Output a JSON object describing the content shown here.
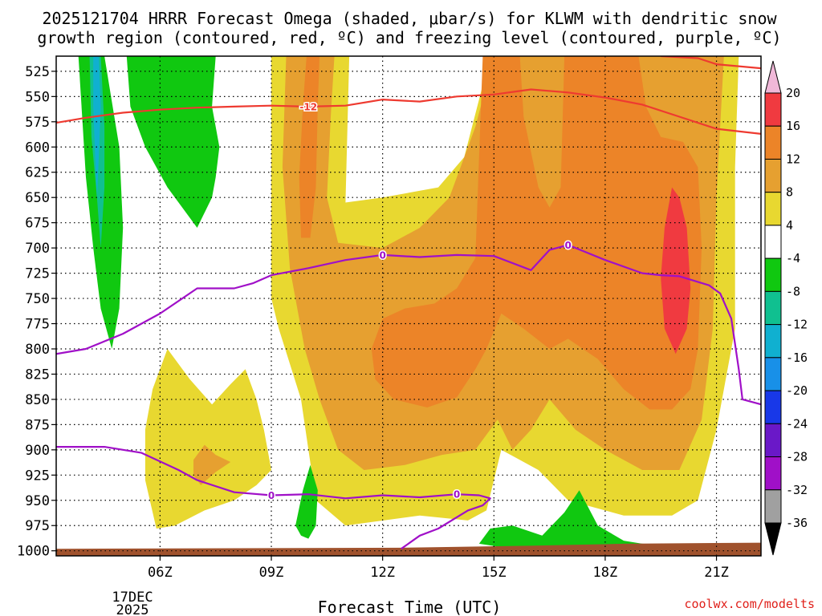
{
  "chart_data": {
    "type": "contour-cross-section",
    "title_line1": "2025121704 HRRR Forecast Omega (shaded, μbar/s) for KLWM with dendritic snow",
    "title_line2": "growth region (contoured, red, ºC) and freezing level (contoured, purple, ºC)",
    "xlabel": "Forecast Time (UTC)",
    "credit": "coolwx.com/modelts",
    "date_label_line1": "17DEC",
    "date_label_line2": "2025",
    "x_hours_range": [
      3.2,
      22.2
    ],
    "y_pressure_range": [
      1005,
      510
    ],
    "x_ticks": [
      {
        "hour": 6,
        "label": "06Z"
      },
      {
        "hour": 9,
        "label": "09Z"
      },
      {
        "hour": 12,
        "label": "12Z"
      },
      {
        "hour": 15,
        "label": "15Z"
      },
      {
        "hour": 18,
        "label": "18Z"
      },
      {
        "hour": 21,
        "label": "21Z"
      }
    ],
    "y_ticks": [
      525,
      550,
      575,
      600,
      625,
      650,
      675,
      700,
      725,
      750,
      775,
      800,
      825,
      850,
      875,
      900,
      925,
      950,
      975,
      1000
    ],
    "colorbar": {
      "labels": [
        "20",
        "16",
        "12",
        "8",
        "4",
        "-4",
        "-8",
        "-12",
        "-16",
        "-20",
        "-24",
        "-28",
        "-32",
        "-36"
      ],
      "colors": [
        "#f0b8d8",
        "#f03a40",
        "#ec8428",
        "#e6a030",
        "#e8d830",
        "#ffffff",
        "#10c810",
        "#10c090",
        "#10b0d0",
        "#1890e8",
        "#1838e8",
        "#6a18c8",
        "#a010c8",
        "#a0a0a0",
        "#000000"
      ]
    },
    "contour_labels": {
      "dendritic_minus12": "-12",
      "freezing_level_0": "0"
    },
    "regions": [
      {
        "name": "omega-4to8-east",
        "color": "#e8d830",
        "points": [
          [
            9.0,
            510
          ],
          [
            11.1,
            510
          ],
          [
            11.0,
            655
          ],
          [
            12.0,
            650
          ],
          [
            13.5,
            640
          ],
          [
            14.2,
            610
          ],
          [
            14.9,
            510
          ],
          [
            21.6,
            510
          ],
          [
            21.5,
            620
          ],
          [
            21.5,
            780
          ],
          [
            21.0,
            880
          ],
          [
            20.5,
            950
          ],
          [
            19.8,
            965
          ],
          [
            18.5,
            965
          ],
          [
            17.0,
            950
          ],
          [
            16.2,
            920
          ],
          [
            15.2,
            900
          ],
          [
            14.8,
            960
          ],
          [
            14.3,
            970
          ],
          [
            13.0,
            965
          ],
          [
            11.0,
            975
          ],
          [
            10.2,
            950
          ],
          [
            9.8,
            850
          ],
          [
            9.2,
            780
          ],
          [
            9.0,
            750
          ]
        ]
      },
      {
        "name": "omega-4to8-low",
        "color": "#e8d830",
        "points": [
          [
            5.6,
            880
          ],
          [
            5.8,
            840
          ],
          [
            6.2,
            800
          ],
          [
            6.8,
            830
          ],
          [
            7.4,
            855
          ],
          [
            7.9,
            835
          ],
          [
            8.3,
            820
          ],
          [
            8.6,
            850
          ],
          [
            8.8,
            880
          ],
          [
            9.0,
            920
          ],
          [
            8.6,
            935
          ],
          [
            8.0,
            950
          ],
          [
            7.2,
            960
          ],
          [
            6.4,
            975
          ],
          [
            5.9,
            978
          ],
          [
            5.6,
            930
          ]
        ]
      },
      {
        "name": "omega-8to12-east",
        "color": "#e6a030",
        "points": [
          [
            9.4,
            510
          ],
          [
            10.7,
            510
          ],
          [
            10.6,
            570
          ],
          [
            10.5,
            650
          ],
          [
            10.8,
            695
          ],
          [
            12.0,
            700
          ],
          [
            13.0,
            680
          ],
          [
            13.8,
            650
          ],
          [
            14.5,
            580
          ],
          [
            15.0,
            510
          ],
          [
            21.2,
            510
          ],
          [
            21.0,
            650
          ],
          [
            20.9,
            780
          ],
          [
            20.6,
            870
          ],
          [
            20.0,
            920
          ],
          [
            19.0,
            920
          ],
          [
            18.0,
            900
          ],
          [
            17.2,
            880
          ],
          [
            16.5,
            850
          ],
          [
            16.0,
            880
          ],
          [
            15.5,
            900
          ],
          [
            15.1,
            870
          ],
          [
            14.5,
            900
          ],
          [
            13.6,
            905
          ],
          [
            12.6,
            915
          ],
          [
            11.5,
            920
          ],
          [
            10.8,
            900
          ],
          [
            10.3,
            850
          ],
          [
            9.9,
            800
          ],
          [
            9.5,
            720
          ],
          [
            9.3,
            620
          ]
        ]
      },
      {
        "name": "omega-8to12-low",
        "color": "#e6a030",
        "points": [
          [
            6.9,
            910
          ],
          [
            7.2,
            895
          ],
          [
            7.5,
            905
          ],
          [
            7.9,
            912
          ],
          [
            7.5,
            922
          ],
          [
            7.1,
            935
          ],
          [
            6.9,
            925
          ]
        ]
      },
      {
        "name": "omega-12to16-east",
        "color": "#ec8428",
        "points": [
          [
            14.7,
            510
          ],
          [
            15.7,
            510
          ],
          [
            15.8,
            570
          ],
          [
            16.2,
            640
          ],
          [
            16.5,
            660
          ],
          [
            16.8,
            640
          ],
          [
            16.9,
            510
          ],
          [
            18.9,
            510
          ],
          [
            19.1,
            560
          ],
          [
            19.5,
            590
          ],
          [
            20.1,
            595
          ],
          [
            20.5,
            620
          ],
          [
            20.6,
            700
          ],
          [
            20.5,
            800
          ],
          [
            20.3,
            840
          ],
          [
            19.8,
            860
          ],
          [
            19.2,
            860
          ],
          [
            18.5,
            840
          ],
          [
            17.8,
            810
          ],
          [
            17.0,
            790
          ],
          [
            16.5,
            800
          ],
          [
            15.8,
            780
          ],
          [
            15.2,
            765
          ],
          [
            14.8,
            800
          ],
          [
            14.5,
            820
          ],
          [
            14.0,
            848
          ],
          [
            13.2,
            858
          ],
          [
            12.3,
            850
          ],
          [
            11.8,
            830
          ],
          [
            11.7,
            800
          ],
          [
            12.0,
            770
          ],
          [
            12.6,
            760
          ],
          [
            13.4,
            755
          ],
          [
            14.0,
            740
          ],
          [
            14.5,
            710
          ]
        ]
      },
      {
        "name": "omega-12to16-west",
        "color": "#ec8428",
        "points": [
          [
            9.95,
            510
          ],
          [
            10.3,
            510
          ],
          [
            10.25,
            560
          ],
          [
            10.2,
            640
          ],
          [
            10.05,
            690
          ],
          [
            9.8,
            690
          ],
          [
            9.75,
            630
          ],
          [
            9.85,
            560
          ]
        ]
      },
      {
        "name": "omega-16to20-core",
        "color": "#f03a40",
        "points": [
          [
            19.6,
            680
          ],
          [
            19.8,
            640
          ],
          [
            20.0,
            650
          ],
          [
            20.2,
            680
          ],
          [
            20.3,
            740
          ],
          [
            20.2,
            780
          ],
          [
            19.9,
            805
          ],
          [
            19.6,
            780
          ],
          [
            19.5,
            730
          ]
        ]
      },
      {
        "name": "omega-neg4to8-west",
        "color": "#10c810",
        "points": [
          [
            3.8,
            510
          ],
          [
            4.5,
            510
          ],
          [
            4.9,
            600
          ],
          [
            5.0,
            680
          ],
          [
            4.9,
            760
          ],
          [
            4.7,
            800
          ],
          [
            4.4,
            760
          ],
          [
            4.2,
            700
          ],
          [
            4.0,
            630
          ]
        ]
      },
      {
        "name": "omega-neg4to8-col2",
        "color": "#10c810",
        "points": [
          [
            5.1,
            510
          ],
          [
            7.5,
            510
          ],
          [
            7.4,
            560
          ],
          [
            7.6,
            600
          ],
          [
            7.5,
            630
          ],
          [
            7.4,
            650
          ],
          [
            7.0,
            680
          ],
          [
            6.2,
            640
          ],
          [
            5.6,
            600
          ],
          [
            5.2,
            560
          ]
        ]
      },
      {
        "name": "omega-neg4to8-small",
        "color": "#10c810",
        "points": [
          [
            9.65,
            975
          ],
          [
            9.85,
            940
          ],
          [
            10.05,
            915
          ],
          [
            10.25,
            940
          ],
          [
            10.2,
            975
          ],
          [
            10.0,
            988
          ],
          [
            9.8,
            985
          ]
        ]
      },
      {
        "name": "omega-neg4to8-sfc",
        "color": "#10c810",
        "points": [
          [
            14.6,
            993
          ],
          [
            14.9,
            978
          ],
          [
            15.5,
            975
          ],
          [
            16.3,
            985
          ],
          [
            16.9,
            962
          ],
          [
            17.3,
            940
          ],
          [
            17.8,
            975
          ],
          [
            18.5,
            990
          ],
          [
            19.0,
            993
          ],
          [
            20.0,
            995
          ],
          [
            17.0,
            997
          ],
          [
            15.5,
            998
          ]
        ]
      },
      {
        "name": "omega-neg8to12-west",
        "color": "#10c090",
        "points": [
          [
            4.1,
            510
          ],
          [
            4.4,
            510
          ],
          [
            4.5,
            580
          ],
          [
            4.5,
            640
          ],
          [
            4.4,
            700
          ],
          [
            4.3,
            650
          ],
          [
            4.15,
            590
          ]
        ]
      },
      {
        "name": "omega-neg12to16-west",
        "color": "#10b0d0",
        "points": [
          [
            4.2,
            510
          ],
          [
            4.35,
            510
          ],
          [
            4.4,
            560
          ],
          [
            4.35,
            610
          ],
          [
            4.3,
            650
          ],
          [
            4.25,
            610
          ],
          [
            4.2,
            560
          ]
        ]
      },
      {
        "name": "terrain",
        "color": "#a0522d",
        "points": [
          [
            3.2,
            1005
          ],
          [
            3.2,
            998
          ],
          [
            12.5,
            997
          ],
          [
            16.0,
            995
          ],
          [
            18.5,
            993
          ],
          [
            22.2,
            992
          ],
          [
            22.2,
            1005
          ]
        ]
      }
    ],
    "lines": [
      {
        "name": "dendritic-minus12-a",
        "color": "#ee3a30",
        "points": [
          [
            3.2,
            576
          ],
          [
            4.0,
            571
          ],
          [
            5.0,
            566
          ],
          [
            6.0,
            563
          ],
          [
            7.0,
            561
          ],
          [
            8.0,
            560
          ],
          [
            9.0,
            559
          ],
          [
            10.0,
            560
          ],
          [
            11.0,
            559
          ],
          [
            12.0,
            553
          ],
          [
            13.0,
            555
          ],
          [
            14.0,
            550
          ],
          [
            15.0,
            548
          ],
          [
            16.0,
            543
          ],
          [
            17.0,
            546
          ],
          [
            18.0,
            551
          ],
          [
            19.0,
            558
          ],
          [
            20.0,
            570
          ],
          [
            21.0,
            582
          ],
          [
            22.2,
            587
          ]
        ]
      },
      {
        "name": "dendritic-minus12-b",
        "color": "#ee3a30",
        "points": [
          [
            19.5,
            510
          ],
          [
            20.5,
            512
          ],
          [
            21.0,
            518
          ],
          [
            22.2,
            522
          ]
        ]
      },
      {
        "name": "freezing-level-main",
        "color": "#a010c8",
        "points": [
          [
            3.2,
            805
          ],
          [
            4.0,
            800
          ],
          [
            5.0,
            785
          ],
          [
            6.0,
            765
          ],
          [
            7.0,
            740
          ],
          [
            8.0,
            740
          ],
          [
            8.5,
            735
          ],
          [
            9.0,
            727
          ],
          [
            10.0,
            720
          ],
          [
            11.0,
            712
          ],
          [
            12.0,
            707
          ],
          [
            13.0,
            709
          ],
          [
            14.0,
            707
          ],
          [
            15.0,
            708
          ],
          [
            16.0,
            722
          ],
          [
            16.5,
            702
          ],
          [
            17.0,
            697
          ],
          [
            18.0,
            712
          ],
          [
            19.0,
            725
          ],
          [
            19.5,
            727
          ],
          [
            20.0,
            728
          ],
          [
            20.8,
            737
          ],
          [
            21.1,
            745
          ],
          [
            21.4,
            770
          ],
          [
            21.6,
            820
          ],
          [
            21.7,
            850
          ],
          [
            22.2,
            855
          ]
        ]
      },
      {
        "name": "freezing-level-low",
        "color": "#a010c8",
        "points": [
          [
            3.2,
            897
          ],
          [
            4.5,
            897
          ],
          [
            5.5,
            903
          ],
          [
            6.5,
            920
          ],
          [
            7.0,
            930
          ],
          [
            8.0,
            942
          ],
          [
            9.0,
            945
          ],
          [
            10.0,
            944
          ],
          [
            11.0,
            948
          ],
          [
            12.0,
            945
          ],
          [
            13.0,
            947
          ],
          [
            14.0,
            944
          ],
          [
            14.6,
            945
          ],
          [
            14.9,
            948
          ],
          [
            14.7,
            955
          ],
          [
            14.3,
            960
          ],
          [
            13.5,
            978
          ],
          [
            13.0,
            985
          ],
          [
            12.5,
            998
          ]
        ]
      }
    ],
    "line_labels": [
      {
        "name": "label-minus12",
        "text": "-12",
        "color": "#ee3a30",
        "x": 10.0,
        "y": 560
      },
      {
        "name": "label-zero-1",
        "text": "0",
        "color": "#a010c8",
        "x": 12.0,
        "y": 707
      },
      {
        "name": "label-zero-2",
        "text": "0",
        "color": "#a010c8",
        "x": 17.0,
        "y": 697
      },
      {
        "name": "label-zero-3",
        "text": "0",
        "color": "#a010c8",
        "x": 9.0,
        "y": 945
      },
      {
        "name": "label-zero-4",
        "text": "0",
        "color": "#a010c8",
        "x": 14.0,
        "y": 944
      }
    ]
  }
}
